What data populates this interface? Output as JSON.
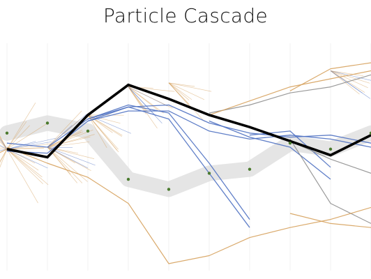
{
  "chart_data": {
    "type": "line",
    "title": "Particle Cascade",
    "xlabel": "",
    "ylabel": "",
    "grid": "vertical",
    "legend": "none",
    "x": [
      0,
      1,
      2,
      3,
      4,
      5,
      6,
      7,
      8,
      9
    ],
    "ylim": [
      0,
      100
    ],
    "colors": {
      "main": "#000000",
      "band": "#dcdcdc",
      "marker": "#4a7a2e",
      "blue": "#4f71c2",
      "orange": "#d6a15c",
      "grey": "#888888"
    },
    "series": [
      {
        "role": "band",
        "values": [
          65,
          70,
          66,
          42,
          37,
          45,
          47,
          60,
          57,
          65
        ]
      },
      {
        "role": "main",
        "values": [
          57,
          53,
          74,
          89,
          82,
          74,
          68,
          61,
          54,
          64
        ]
      },
      {
        "role": "blue",
        "values": [
          60,
          58,
          72,
          78,
          79,
          70,
          65,
          63,
          64,
          60
        ]
      },
      {
        "role": "blue",
        "values": [
          56,
          55,
          71,
          76,
          76,
          66,
          62,
          64,
          62,
          58
        ]
      },
      {
        "role": "blue",
        "values": [
          null,
          null,
          71,
          78,
          72,
          45,
          18,
          null,
          null,
          null
        ]
      },
      {
        "role": "blue",
        "values": [
          null,
          null,
          72,
          79,
          75,
          50,
          22,
          null,
          null,
          null
        ]
      },
      {
        "role": "blue",
        "values": [
          null,
          null,
          null,
          null,
          null,
          71,
          63,
          58,
          42,
          null
        ]
      },
      {
        "role": "blue",
        "values": [
          null,
          null,
          null,
          null,
          null,
          null,
          64,
          66,
          48,
          null
        ]
      },
      {
        "role": "grey",
        "values": [
          null,
          null,
          null,
          null,
          null,
          75,
          79,
          85,
          88,
          94
        ]
      },
      {
        "role": "grey",
        "values": [
          null,
          null,
          null,
          null,
          null,
          null,
          null,
          62,
          30,
          20
        ]
      },
      {
        "role": "grey",
        "values": [
          null,
          null,
          null,
          null,
          null,
          null,
          null,
          61,
          52,
          45
        ]
      },
      {
        "role": "orange",
        "values": [
          58,
          50,
          43,
          30,
          0,
          4,
          13,
          18,
          22,
          28
        ]
      },
      {
        "role": "orange",
        "values": [
          null,
          null,
          null,
          null,
          null,
          74,
          81,
          88,
          92,
          96
        ]
      },
      {
        "role": "orange",
        "values": [
          null,
          null,
          null,
          null,
          null,
          null,
          null,
          86,
          97,
          100
        ]
      },
      {
        "role": "orange",
        "values": [
          null,
          null,
          null,
          null,
          null,
          null,
          null,
          25,
          20,
          18
        ]
      }
    ]
  }
}
